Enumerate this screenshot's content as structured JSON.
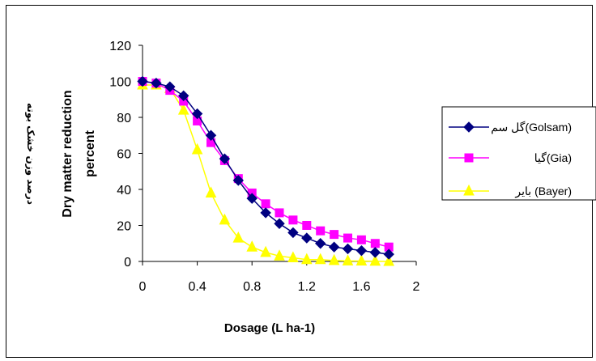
{
  "chart_data": {
    "type": "line",
    "title": "",
    "xlabel": "Dosage (L ha-1)",
    "ylabel_lines": [
      "درصد وزن خشک بوته",
      "Dry matter reduction",
      "percent"
    ],
    "xlim": [
      0,
      2
    ],
    "ylim": [
      0,
      120
    ],
    "xticks": [
      "0",
      "0.4",
      "0.8",
      "1.2",
      "1.6",
      "2"
    ],
    "yticks": [
      "0",
      "20",
      "40",
      "60",
      "80",
      "100",
      "120"
    ],
    "grid": false,
    "legend_position": "right",
    "series": [
      {
        "name": "گل سم(Golsam)",
        "color": "#000080",
        "marker": "diamond",
        "x": [
          0,
          0.1,
          0.2,
          0.3,
          0.4,
          0.5,
          0.6,
          0.7,
          0.8,
          0.9,
          1.0,
          1.1,
          1.2,
          1.3,
          1.4,
          1.5,
          1.6,
          1.7,
          1.8
        ],
        "y": [
          100,
          99,
          97,
          92,
          82,
          70,
          57,
          45,
          35,
          27,
          21,
          16,
          13,
          10,
          8,
          7,
          6,
          5,
          4
        ]
      },
      {
        "name": "گیا(Gia)",
        "color": "#ff00ff",
        "marker": "square",
        "x": [
          0,
          0.1,
          0.2,
          0.3,
          0.4,
          0.5,
          0.6,
          0.7,
          0.8,
          0.9,
          1.0,
          1.1,
          1.2,
          1.3,
          1.4,
          1.5,
          1.6,
          1.7,
          1.8
        ],
        "y": [
          100,
          99,
          95,
          89,
          78,
          66,
          56,
          46,
          38,
          32,
          27,
          23,
          20,
          17,
          15,
          13,
          12,
          10,
          8
        ]
      },
      {
        "name": "بایر (Bayer)",
        "color": "#ffff00",
        "marker": "triangle",
        "x": [
          0,
          0.1,
          0.2,
          0.3,
          0.4,
          0.5,
          0.6,
          0.7,
          0.8,
          0.9,
          1.0,
          1.1,
          1.2,
          1.3,
          1.4,
          1.5,
          1.6,
          1.7,
          1.8
        ],
        "y": [
          98,
          98,
          96,
          84,
          62,
          38,
          23,
          13,
          8,
          5,
          3,
          2,
          1,
          1,
          0.5,
          0.3,
          0.2,
          0.1,
          0
        ]
      }
    ]
  }
}
